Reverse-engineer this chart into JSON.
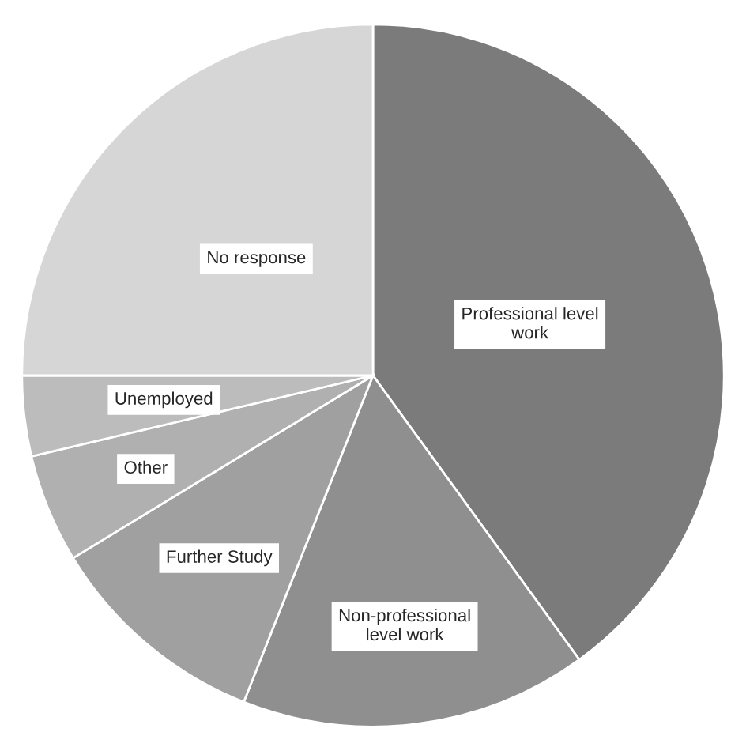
{
  "chart_data": {
    "type": "pie",
    "categories": [
      "Professional level\nwork",
      "Non-professional\nlevel work",
      "Further Study",
      "Other",
      "Unemployed",
      "No response"
    ],
    "values": [
      40,
      16,
      10.3,
      5,
      3.7,
      25
    ],
    "colors": [
      "#7b7b7b",
      "#8f8f8f",
      "#a0a0a0",
      "#b0b0b0",
      "#bcbcbc",
      "#d6d6d6"
    ],
    "legend": false
  }
}
